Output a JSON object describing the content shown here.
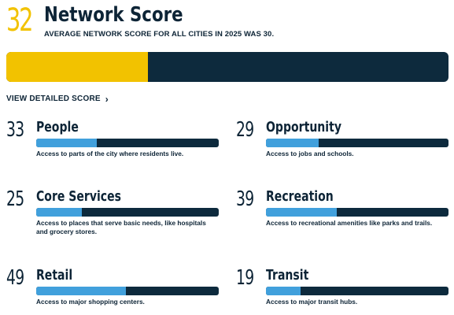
{
  "header": {
    "score": "32",
    "title": "Network Score",
    "subtitle": "AVERAGE NETWORK SCORE FOR ALL CITIES IN 2025 WAS 30."
  },
  "main_bar": {
    "value": 32,
    "max": 100,
    "fill_color": "#F2C200",
    "track_color": "#0D2A3D"
  },
  "view_link": {
    "label": "VIEW DETAILED SCORE",
    "icon": "chevron-right-icon"
  },
  "colors": {
    "accent": "#F2C200",
    "bar_fill": "#41A0DC",
    "bar_track": "#0D2A3D",
    "text": "#0D2436"
  },
  "categories": [
    {
      "score": "33",
      "name": "People",
      "value": 33,
      "description": "Access to parts of the city where residents live."
    },
    {
      "score": "29",
      "name": "Opportunity",
      "value": 29,
      "description": "Access to jobs and schools."
    },
    {
      "score": "25",
      "name": "Core Services",
      "value": 25,
      "description": "Access to places that serve basic needs, like hospitals and grocery stores."
    },
    {
      "score": "39",
      "name": "Recreation",
      "value": 39,
      "description": "Access to recreational amenities like parks and trails."
    },
    {
      "score": "49",
      "name": "Retail",
      "value": 49,
      "description": "Access to major shopping centers."
    },
    {
      "score": "19",
      "name": "Transit",
      "value": 19,
      "description": "Access to major transit hubs."
    }
  ]
}
